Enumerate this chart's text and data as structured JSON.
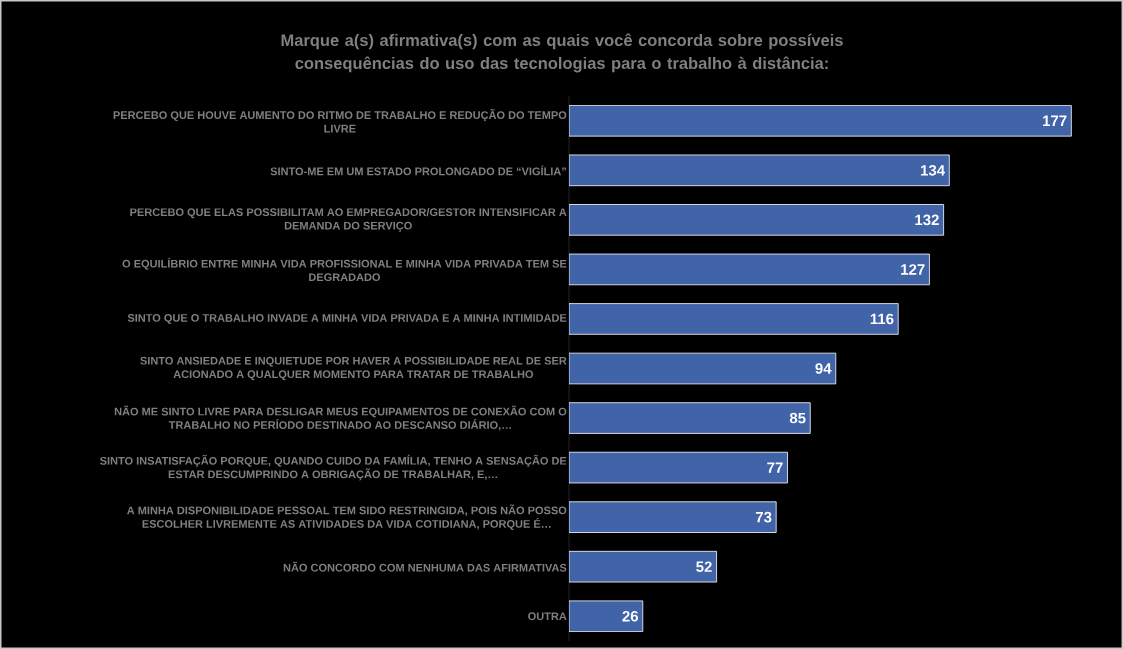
{
  "chart_data": {
    "type": "bar",
    "orientation": "horizontal",
    "title": "Marque a(s) afirmativa(s) com as quais você concorda sobre possíveis consequências do uso das tecnologias para o trabalho à distância:",
    "categories": [
      "PERCEBO QUE HOUVE AUMENTO DO RITMO DE TRABALHO E REDUÇÃO DO TEMPO LIVRE",
      "SINTO-ME EM UM ESTADO PROLONGADO DE “VIGÍLIA”",
      "PERCEBO QUE ELAS POSSIBILITAM AO EMPREGADOR/GESTOR INTENSIFICAR A DEMANDA DO SERVIÇO",
      "O EQUILÍBRIO ENTRE MINHA VIDA PROFISSIONAL E MINHA VIDA PRIVADA TEM SE DEGRADADO",
      "SINTO QUE O TRABALHO INVADE A MINHA VIDA PRIVADA E A MINHA INTIMIDADE",
      "SINTO ANSIEDADE E INQUIETUDE POR HAVER A POSSIBILIDADE REAL DE SER ACIONADO A QUALQUER MOMENTO PARA TRATAR DE TRABALHO",
      "NÃO ME SINTO LIVRE PARA DESLIGAR MEUS EQUIPAMENTOS DE CONEXÃO COM O TRABALHO NO PERÍODO DESTINADO AO DESCANSO DIÁRIO,…",
      "SINTO INSATISFAÇÃO PORQUE, QUANDO CUIDO DA FAMÍLIA, TENHO A SENSAÇÃO DE ESTAR DESCUMPRINDO A OBRIGAÇÃO DE TRABALHAR, E,…",
      "A MINHA DISPONIBILIDADE PESSOAL TEM SIDO RESTRINGIDA, POIS NÃO POSSO ESCOLHER LIVREMENTE AS ATIVIDADES DA VIDA COTIDIANA, PORQUE É…",
      "NÃO CONCORDO COM NENHUMA DAS AFIRMATIVAS",
      "OUTRA"
    ],
    "values": [
      177,
      134,
      132,
      127,
      116,
      94,
      85,
      77,
      73,
      52,
      26
    ],
    "color": "#4163a8",
    "data_labels": true
  }
}
